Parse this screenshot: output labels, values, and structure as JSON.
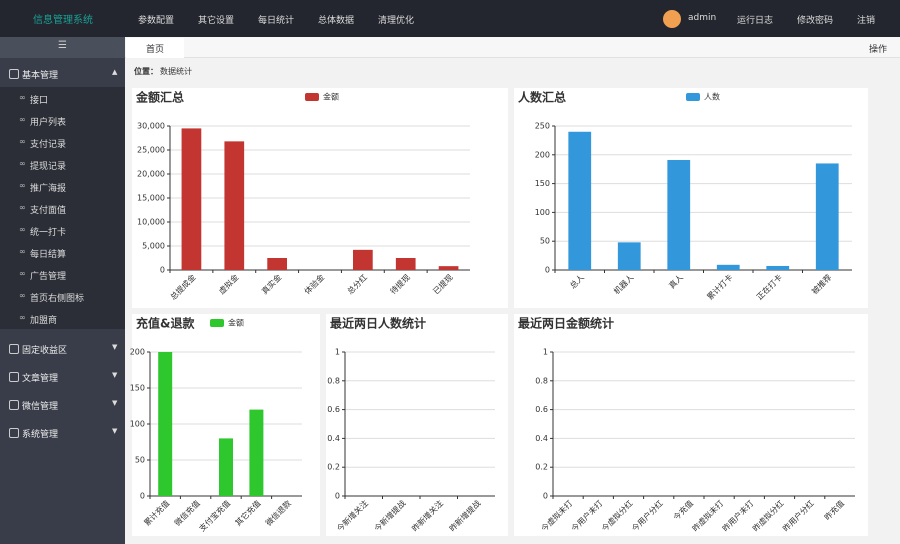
{
  "header": {
    "title": "信息管理系统",
    "nav": [
      "参数配置",
      "其它设置",
      "每日统计",
      "总体数据",
      "清理优化"
    ],
    "user": "admin",
    "links": [
      "运行日志",
      "修改密码",
      "注销"
    ]
  },
  "sidebar": {
    "groups": [
      {
        "label": "基本管理",
        "items": [
          "接口",
          "用户列表",
          "支付记录",
          "提现记录",
          "推广海报",
          "支付面值",
          "统一打卡",
          "每日结算",
          "广告管理",
          "首页右侧图标",
          "加盟商"
        ]
      },
      {
        "label": "固定收益区"
      },
      {
        "label": "文章管理"
      },
      {
        "label": "微信管理"
      },
      {
        "label": "系统管理"
      }
    ]
  },
  "tabs": {
    "active": "首页",
    "action": "操作"
  },
  "breadcrumb": {
    "label": "位置：",
    "page": "数据统计"
  },
  "chart_data": [
    {
      "type": "bar",
      "title": "金额汇总",
      "series": [
        {
          "name": "金额",
          "color": "#c23531",
          "values": [
            29500,
            26800,
            2500,
            0,
            4200,
            2500,
            800
          ]
        }
      ],
      "categories": [
        "总提成金",
        "虚拟金",
        "真实金",
        "体验金",
        "总分红",
        "待提现",
        "已提现"
      ],
      "ylim": [
        0,
        30000
      ],
      "yticks": [
        0,
        {
          "value": 5000,
          "label": "5,000"
        },
        {
          "value": 10000,
          "label": "10,000"
        },
        {
          "value": 15000,
          "label": "15,000"
        },
        {
          "value": 20000,
          "label": "20,000"
        },
        {
          "value": 25000,
          "label": "25,000"
        },
        {
          "value": 30000,
          "label": "30,000"
        }
      ],
      "grid": true
    },
    {
      "type": "bar",
      "title": "人数汇总",
      "series": [
        {
          "name": "人数",
          "color": "#3398db",
          "values": [
            240,
            48,
            191,
            9,
            7,
            185
          ]
        }
      ],
      "categories": [
        "总人",
        "机器人",
        "真人",
        "累计打卡",
        "正在打卡",
        "被推荐"
      ],
      "ylim": [
        0,
        250
      ],
      "yticks": [
        0,
        50,
        100,
        150,
        200,
        250
      ],
      "grid": true
    },
    {
      "type": "bar",
      "title": "充值&退款",
      "series": [
        {
          "name": "金额",
          "color": "#2ec72e",
          "values": [
            200,
            0,
            80,
            120,
            0
          ]
        }
      ],
      "categories": [
        "累计充值",
        "微信充值",
        "支付宝充值",
        "其它充值",
        "微信退款"
      ],
      "ylim": [
        0,
        200
      ],
      "yticks": [
        0,
        50,
        100,
        150,
        200
      ],
      "grid": true
    },
    {
      "type": "bar",
      "title": "最近两日人数统计",
      "series": [
        {
          "color": "#c23531",
          "values": [
            0,
            0,
            0,
            0
          ]
        }
      ],
      "categories": [
        "今新增关注",
        "今新增提战",
        "昨新增关注",
        "昨新增提战"
      ],
      "ylim": [
        0,
        1
      ],
      "yticks": [
        0,
        0.2,
        0.4,
        0.6,
        0.8,
        1
      ],
      "grid": true
    },
    {
      "type": "bar",
      "title": "最近两日金额统计",
      "series": [
        {
          "color": "#c23531",
          "values": [
            0,
            0,
            0,
            0,
            0,
            0,
            0,
            0,
            0,
            0
          ]
        }
      ],
      "categories": [
        "今虚拟未打",
        "今用户未打",
        "今虚拟分红",
        "今用户分红",
        "今充值",
        "昨虚拟未打",
        "昨用户未打",
        "昨虚拟分红",
        "昨用户分红",
        "昨充值"
      ],
      "ylim": [
        0,
        1
      ],
      "yticks": [
        0,
        0.2,
        0.4,
        0.6,
        0.8,
        1
      ],
      "grid": true
    }
  ]
}
